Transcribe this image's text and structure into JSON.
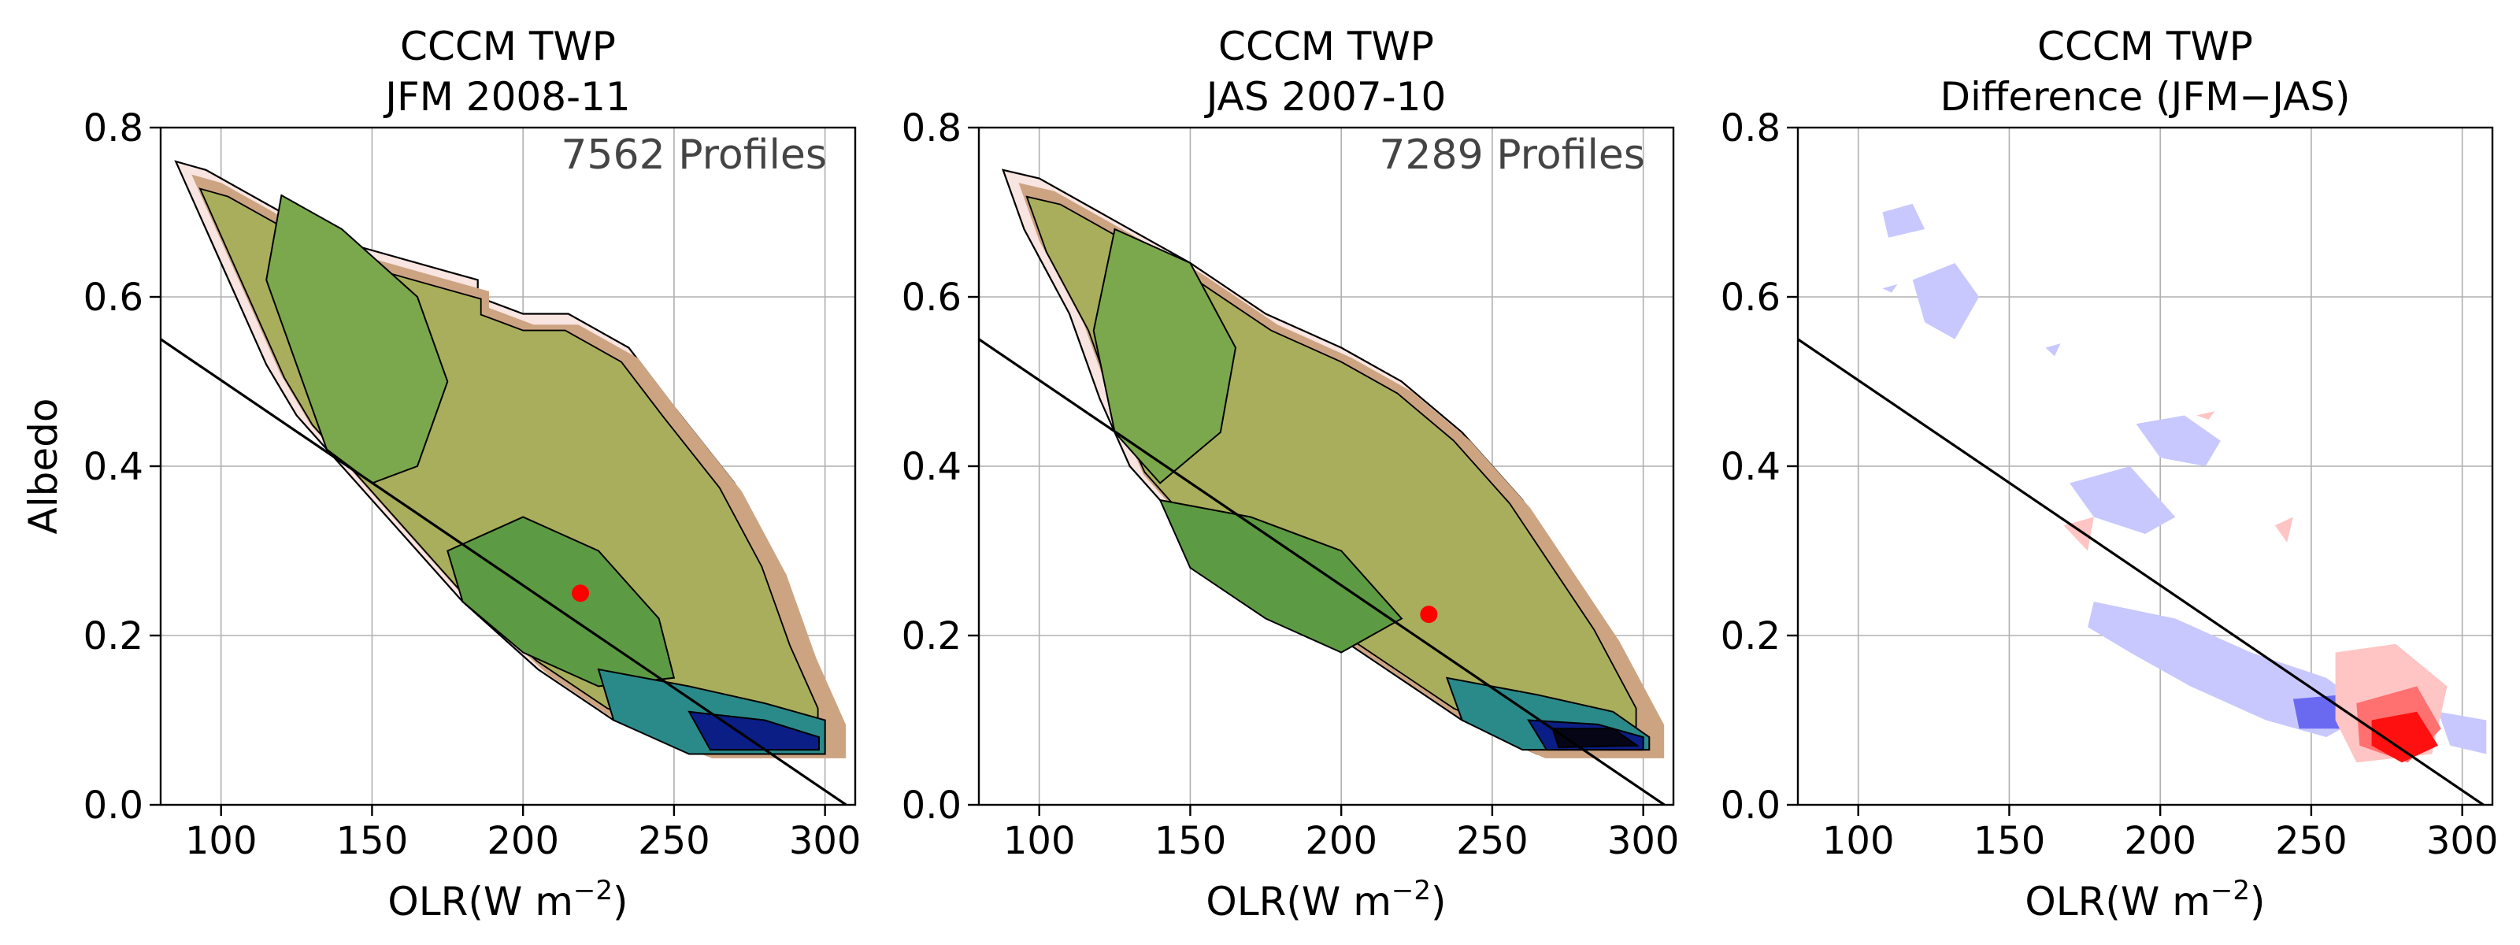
{
  "chart_data": [
    {
      "type": "contour",
      "title_line1": "CCCM TWP",
      "title_line2": "JFM 2008-11",
      "xlabel": "OLR(W m",
      "xlabel_sup": "−2",
      "xlabel_close": ")",
      "ylabel": "Albedo",
      "annotation": "7562 Profiles",
      "xlim": [
        80,
        310
      ],
      "ylim": [
        0.0,
        0.8
      ],
      "xticks": [
        100,
        150,
        200,
        250,
        300
      ],
      "yticks": [
        0.0,
        0.2,
        0.4,
        0.6,
        0.8
      ],
      "grid": true,
      "mean_point": [
        219,
        0.25
      ],
      "reference_line": [
        [
          80,
          0.55
        ],
        [
          307,
          0.0
        ]
      ],
      "envelope": [
        [
          85,
          0.76
        ],
        [
          95,
          0.75
        ],
        [
          120,
          0.7
        ],
        [
          145,
          0.66
        ],
        [
          175,
          0.63
        ],
        [
          185,
          0.62
        ],
        [
          185,
          0.6
        ],
        [
          200,
          0.58
        ],
        [
          215,
          0.58
        ],
        [
          235,
          0.54
        ],
        [
          250,
          0.47
        ],
        [
          270,
          0.38
        ],
        [
          285,
          0.28
        ],
        [
          295,
          0.18
        ],
        [
          305,
          0.1
        ],
        [
          305,
          0.06
        ],
        [
          260,
          0.06
        ],
        [
          230,
          0.1
        ],
        [
          205,
          0.16
        ],
        [
          180,
          0.24
        ],
        [
          160,
          0.32
        ],
        [
          140,
          0.4
        ],
        [
          125,
          0.46
        ],
        [
          115,
          0.52
        ],
        [
          105,
          0.6
        ],
        [
          95,
          0.68
        ]
      ],
      "cores": [
        {
          "points": [
            [
              120,
              0.72
            ],
            [
              140,
              0.68
            ],
            [
              165,
              0.6
            ],
            [
              175,
              0.5
            ],
            [
              165,
              0.4
            ],
            [
              150,
              0.38
            ],
            [
              135,
              0.42
            ],
            [
              125,
              0.52
            ],
            [
              115,
              0.62
            ]
          ],
          "color": "#7ba84d"
        },
        {
          "points": [
            [
              175,
              0.3
            ],
            [
              200,
              0.34
            ],
            [
              225,
              0.3
            ],
            [
              245,
              0.22
            ],
            [
              250,
              0.15
            ],
            [
              225,
              0.14
            ],
            [
              200,
              0.18
            ],
            [
              180,
              0.24
            ]
          ],
          "color": "#5c9b43"
        },
        {
          "points": [
            [
              225,
              0.16
            ],
            [
              255,
              0.14
            ],
            [
              280,
              0.12
            ],
            [
              300,
              0.1
            ],
            [
              300,
              0.06
            ],
            [
              255,
              0.06
            ],
            [
              230,
              0.1
            ]
          ],
          "color": "#2a8a8a"
        },
        {
          "points": [
            [
              255,
              0.11
            ],
            [
              280,
              0.1
            ],
            [
              298,
              0.08
            ],
            [
              298,
              0.065
            ],
            [
              262,
              0.065
            ]
          ],
          "color": "#0b1e86"
        }
      ]
    },
    {
      "type": "contour",
      "title_line1": "CCCM TWP",
      "title_line2": "JAS 2007-10",
      "xlabel": "OLR(W m",
      "xlabel_sup": "−2",
      "xlabel_close": ")",
      "annotation": "7289 Profiles",
      "xlim": [
        80,
        310
      ],
      "ylim": [
        0.0,
        0.8
      ],
      "xticks": [
        100,
        150,
        200,
        250,
        300
      ],
      "yticks": [
        0.0,
        0.2,
        0.4,
        0.6,
        0.8
      ],
      "grid": true,
      "mean_point": [
        229,
        0.225
      ],
      "reference_line": [
        [
          80,
          0.55
        ],
        [
          307,
          0.0
        ]
      ],
      "envelope": [
        [
          88,
          0.75
        ],
        [
          100,
          0.74
        ],
        [
          125,
          0.69
        ],
        [
          150,
          0.64
        ],
        [
          175,
          0.58
        ],
        [
          200,
          0.54
        ],
        [
          220,
          0.5
        ],
        [
          240,
          0.44
        ],
        [
          260,
          0.36
        ],
        [
          275,
          0.28
        ],
        [
          290,
          0.2
        ],
        [
          305,
          0.1
        ],
        [
          305,
          0.06
        ],
        [
          265,
          0.06
        ],
        [
          240,
          0.1
        ],
        [
          215,
          0.16
        ],
        [
          190,
          0.22
        ],
        [
          170,
          0.28
        ],
        [
          150,
          0.32
        ],
        [
          130,
          0.4
        ],
        [
          120,
          0.48
        ],
        [
          110,
          0.58
        ],
        [
          95,
          0.68
        ]
      ],
      "cores": [
        {
          "points": [
            [
              125,
              0.68
            ],
            [
              150,
              0.64
            ],
            [
              165,
              0.54
            ],
            [
              160,
              0.44
            ],
            [
              140,
              0.38
            ],
            [
              125,
              0.44
            ],
            [
              118,
              0.56
            ]
          ],
          "color": "#7ba84d"
        },
        {
          "points": [
            [
              140,
              0.36
            ],
            [
              170,
              0.34
            ],
            [
              200,
              0.3
            ],
            [
              220,
              0.22
            ],
            [
              200,
              0.18
            ],
            [
              175,
              0.22
            ],
            [
              150,
              0.28
            ]
          ],
          "color": "#5c9b43"
        },
        {
          "points": [
            [
              235,
              0.15
            ],
            [
              265,
              0.13
            ],
            [
              290,
              0.11
            ],
            [
              302,
              0.08
            ],
            [
              302,
              0.065
            ],
            [
              260,
              0.065
            ],
            [
              240,
              0.1
            ]
          ],
          "color": "#2a8a8a"
        },
        {
          "points": [
            [
              262,
              0.1
            ],
            [
              285,
              0.095
            ],
            [
              300,
              0.08
            ],
            [
              300,
              0.065
            ],
            [
              268,
              0.065
            ]
          ],
          "color": "#0b1e86"
        },
        {
          "points": [
            [
              270,
              0.09
            ],
            [
              290,
              0.09
            ],
            [
              298,
              0.07
            ],
            [
              272,
              0.068
            ]
          ],
          "color": "#050515"
        }
      ]
    },
    {
      "type": "contour",
      "title_line1": "CCCM TWP",
      "title_line2": "Difference (JFM−JAS)",
      "xlabel": "OLR(W m",
      "xlabel_sup": "−2",
      "xlabel_close": ")",
      "xlim": [
        80,
        310
      ],
      "ylim": [
        0.0,
        0.8
      ],
      "xticks": [
        100,
        150,
        200,
        250,
        300
      ],
      "yticks": [
        0.0,
        0.2,
        0.4,
        0.6,
        0.8
      ],
      "grid": true,
      "reference_line": [
        [
          80,
          0.55
        ],
        [
          307,
          0.0
        ]
      ],
      "blobs": [
        {
          "points": [
            [
              108,
              0.7
            ],
            [
              118,
              0.71
            ],
            [
              122,
              0.68
            ],
            [
              110,
              0.67
            ]
          ],
          "color": "#c8c8ff"
        },
        {
          "points": [
            [
              118,
              0.62
            ],
            [
              132,
              0.64
            ],
            [
              140,
              0.6
            ],
            [
              132,
              0.55
            ],
            [
              122,
              0.57
            ]
          ],
          "color": "#c8c8ff"
        },
        {
          "points": [
            [
              108,
              0.61
            ],
            [
              113,
              0.615
            ],
            [
              111,
              0.605
            ]
          ],
          "color": "#c8c8ff"
        },
        {
          "points": [
            [
              162,
              0.54
            ],
            [
              167,
              0.545
            ],
            [
              165,
              0.53
            ]
          ],
          "color": "#c8c8ff"
        },
        {
          "points": [
            [
              192,
              0.45
            ],
            [
              208,
              0.46
            ],
            [
              220,
              0.43
            ],
            [
              215,
              0.4
            ],
            [
              200,
              0.41
            ]
          ],
          "color": "#c8c8ff"
        },
        {
          "points": [
            [
              170,
              0.38
            ],
            [
              190,
              0.4
            ],
            [
              205,
              0.34
            ],
            [
              195,
              0.32
            ],
            [
              178,
              0.34
            ]
          ],
          "color": "#c8c8ff"
        },
        {
          "points": [
            [
              178,
              0.24
            ],
            [
              205,
              0.22
            ],
            [
              230,
              0.18
            ],
            [
              255,
              0.15
            ],
            [
              270,
              0.11
            ],
            [
              255,
              0.08
            ],
            [
              235,
              0.1
            ],
            [
              210,
              0.14
            ],
            [
              190,
              0.18
            ],
            [
              176,
              0.21
            ]
          ],
          "color": "#c8c8ff"
        },
        {
          "points": [
            [
              244,
              0.125
            ],
            [
              260,
              0.13
            ],
            [
              262,
              0.09
            ],
            [
              246,
              0.09
            ]
          ],
          "color": "#6a6af0"
        },
        {
          "points": [
            [
              292,
              0.11
            ],
            [
              308,
              0.1
            ],
            [
              308,
              0.06
            ],
            [
              296,
              0.07
            ]
          ],
          "color": "#c8c8ff"
        },
        {
          "points": [
            [
              168,
              0.33
            ],
            [
              178,
              0.34
            ],
            [
              176,
              0.3
            ]
          ],
          "color": "#ffc4c4"
        },
        {
          "points": [
            [
              258,
              0.18
            ],
            [
              278,
              0.19
            ],
            [
              295,
              0.14
            ],
            [
              290,
              0.06
            ],
            [
              265,
              0.05
            ],
            [
              258,
              0.1
            ]
          ],
          "color": "#ffc4c4"
        },
        {
          "points": [
            [
              265,
              0.12
            ],
            [
              285,
              0.14
            ],
            [
              293,
              0.09
            ],
            [
              282,
              0.05
            ],
            [
              266,
              0.07
            ]
          ],
          "color": "#ff7070"
        },
        {
          "points": [
            [
              270,
              0.1
            ],
            [
              285,
              0.11
            ],
            [
              292,
              0.07
            ],
            [
              280,
              0.05
            ],
            [
              270,
              0.07
            ]
          ],
          "color": "#ff1010"
        },
        {
          "points": [
            [
              238,
              0.33
            ],
            [
              244,
              0.34
            ],
            [
              242,
              0.31
            ]
          ],
          "color": "#ffc4c4"
        },
        {
          "points": [
            [
              212,
              0.46
            ],
            [
              218,
              0.465
            ],
            [
              216,
              0.455
            ]
          ],
          "color": "#ffc4c4"
        }
      ]
    }
  ]
}
